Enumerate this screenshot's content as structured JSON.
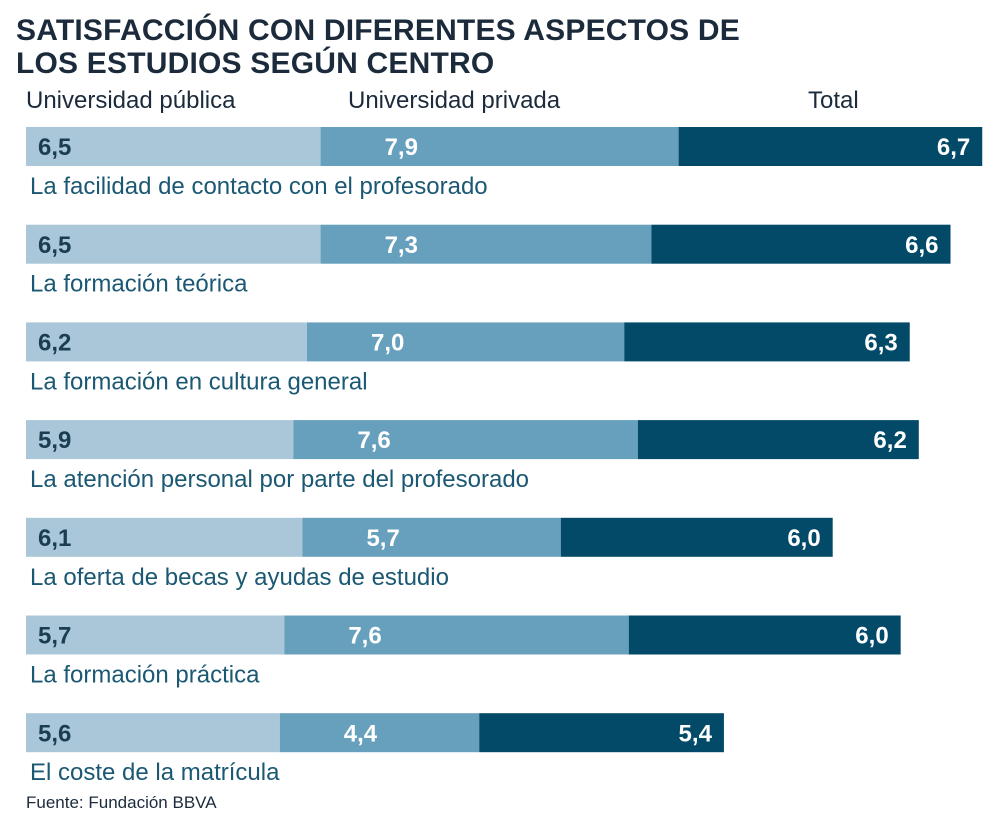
{
  "title_lines": [
    "SATISFACCIÓN CON DIFERENTES ASPECTOS DE",
    "LOS ESTUDIOS SEGÚN CENTRO"
  ],
  "source": "Fuente: Fundación BBVA",
  "colors": {
    "publica": "#a9c7d8",
    "privada": "#67a0bd",
    "total": "#034a69",
    "label_text": "#1b5873",
    "value_dark": "#1b3d52",
    "value_light": "#ffffff"
  },
  "chart_data": {
    "type": "bar",
    "stacked": true,
    "orientation": "horizontal",
    "title": "SATISFACCIÓN CON DIFERENTES ASPECTOS DE LOS ESTUDIOS SEGÚN CENTRO",
    "categories": [
      "La facilidad de contacto con el profesorado",
      "La formación teórica",
      "La formación en cultura general",
      "La atención personal por parte del profesorado",
      "La oferta de becas y ayudas de estudio",
      "La formación práctica",
      "El coste de la matrícula"
    ],
    "series": [
      {
        "name": "Universidad pública",
        "values": [
          6.5,
          6.5,
          6.2,
          5.9,
          6.1,
          5.7,
          5.6
        ],
        "labels": [
          "6,5",
          "6,5",
          "6,2",
          "5,9",
          "6,1",
          "5,7",
          "5,6"
        ]
      },
      {
        "name": "Universidad privada",
        "values": [
          7.9,
          7.3,
          7.0,
          7.6,
          5.7,
          7.6,
          4.4
        ],
        "labels": [
          "7,9",
          "7,3",
          "7,0",
          "7,6",
          "5,7",
          "7,6",
          "4,4"
        ]
      },
      {
        "name": "Total",
        "values": [
          6.7,
          6.6,
          6.3,
          6.2,
          6.0,
          6.0,
          5.4
        ],
        "labels": [
          "6,7",
          "6,6",
          "6,3",
          "6,2",
          "6,0",
          "6,0",
          "5,4"
        ]
      }
    ],
    "legend_position": "top",
    "grid": false,
    "axes_visible": false
  }
}
